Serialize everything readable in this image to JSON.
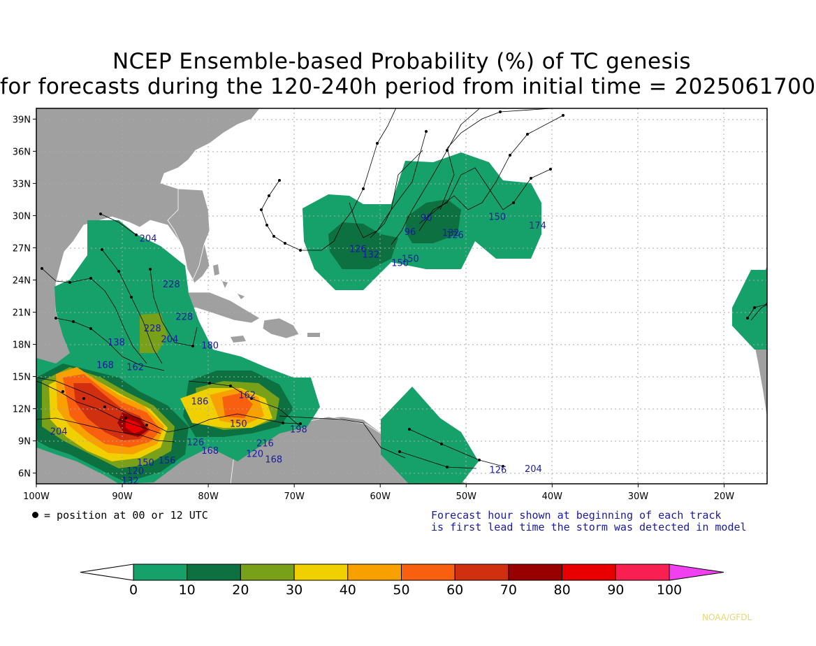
{
  "title": {
    "line1": "NCEP Ensemble-based Probability (%) of TC genesis",
    "line2": "for forecasts during the 120-240h period from initial time = 2025061700"
  },
  "axes": {
    "lon_labels": [
      "100W",
      "90W",
      "80W",
      "70W",
      "60W",
      "50W",
      "40W",
      "30W",
      "20W"
    ],
    "lat_labels": [
      "39N",
      "36N",
      "33N",
      "30N",
      "27N",
      "24N",
      "21N",
      "18N",
      "15N",
      "12N",
      "9N",
      "6N"
    ],
    "lon_range": [
      -100,
      -15
    ],
    "lat_range": [
      5,
      40
    ]
  },
  "notes": {
    "position_marker": "= position at 00 or 12 UTC",
    "forecast_hour_line1": "Forecast hour shown at beginning of each track",
    "forecast_hour_line2": "is first lead time the storm was detected in model"
  },
  "colorbar": {
    "ticks": [
      "0",
      "10",
      "20",
      "30",
      "40",
      "50",
      "60",
      "70",
      "80",
      "90",
      "100"
    ],
    "colors": [
      "#ffffff",
      "#16a06a",
      "#0c7040",
      "#78a018",
      "#f0d000",
      "#f8a000",
      "#f86010",
      "#d03010",
      "#980000",
      "#e80000",
      "#f82050",
      "#f040f0"
    ]
  },
  "track_labels": [
    {
      "text": "204",
      "lon": -88,
      "lat": 27.6
    },
    {
      "text": "228",
      "lon": -85.3,
      "lat": 23.3
    },
    {
      "text": "228",
      "lon": -83.8,
      "lat": 20.3
    },
    {
      "text": "228",
      "lon": -87.5,
      "lat": 19.2
    },
    {
      "text": "204",
      "lon": -85.5,
      "lat": 18.2
    },
    {
      "text": "180",
      "lon": -80.8,
      "lat": 17.6
    },
    {
      "text": "138",
      "lon": -91.7,
      "lat": 17.9
    },
    {
      "text": "168",
      "lon": -93,
      "lat": 15.8
    },
    {
      "text": "162",
      "lon": -89.5,
      "lat": 15.6
    },
    {
      "text": "204",
      "lon": -98.4,
      "lat": 9.6
    },
    {
      "text": "162",
      "lon": -76.5,
      "lat": 13
    },
    {
      "text": "150",
      "lon": -77.5,
      "lat": 10.3
    },
    {
      "text": "186",
      "lon": -82,
      "lat": 12.4
    },
    {
      "text": "126",
      "lon": -82.5,
      "lat": 8.6
    },
    {
      "text": "168",
      "lon": -80.8,
      "lat": 7.8
    },
    {
      "text": "120",
      "lon": -75.6,
      "lat": 7.5
    },
    {
      "text": "216",
      "lon": -74.4,
      "lat": 8.5
    },
    {
      "text": "168",
      "lon": -73.4,
      "lat": 7
    },
    {
      "text": "198",
      "lon": -70.5,
      "lat": 9.8
    },
    {
      "text": "150",
      "lon": -88.3,
      "lat": 6.7
    },
    {
      "text": "156",
      "lon": -85.8,
      "lat": 6.9
    },
    {
      "text": "120",
      "lon": -89.5,
      "lat": 5.9
    },
    {
      "text": "132",
      "lon": -90.1,
      "lat": 5
    },
    {
      "text": "126",
      "lon": -63.6,
      "lat": 26.6
    },
    {
      "text": "132",
      "lon": -62.1,
      "lat": 26.1
    },
    {
      "text": "150",
      "lon": -58.7,
      "lat": 25.3
    },
    {
      "text": "150",
      "lon": -57.5,
      "lat": 25.7
    },
    {
      "text": "96",
      "lon": -57.2,
      "lat": 28.2
    },
    {
      "text": "90",
      "lon": -55.3,
      "lat": 29.5
    },
    {
      "text": "132",
      "lon": -52.8,
      "lat": 28.1
    },
    {
      "text": "126",
      "lon": -52.3,
      "lat": 27.9
    },
    {
      "text": "150",
      "lon": -47.4,
      "lat": 29.6
    },
    {
      "text": "174",
      "lon": -42.7,
      "lat": 28.8
    },
    {
      "text": "126",
      "lon": -47.3,
      "lat": 6
    },
    {
      "text": "204",
      "lon": -43.2,
      "lat": 6.1
    }
  ],
  "credit": "NOAA/GFDL"
}
